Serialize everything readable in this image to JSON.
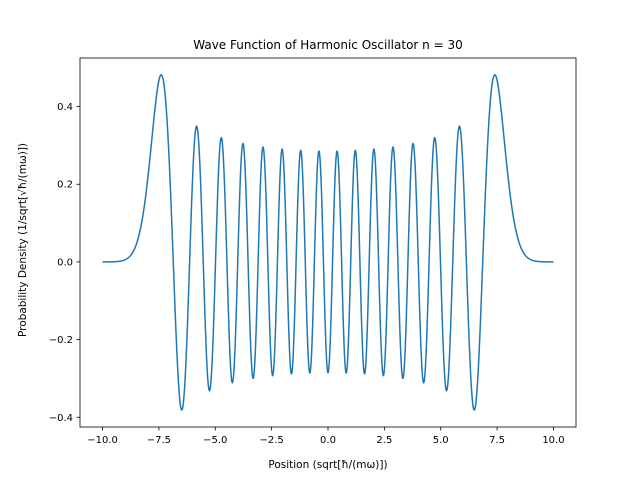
{
  "chart_data": {
    "type": "line",
    "title": "Wave Function of Harmonic Oscillator n = 30",
    "xlabel": "Position (sqrt[ħ/(mω)])",
    "ylabel": "Probability Density (1/sqrt[√ħ/(mω)])",
    "xlim": [
      -11.0,
      11.0
    ],
    "ylim": [
      -0.425,
      0.525
    ],
    "x_ticks": [
      -10.0,
      -7.5,
      -5.0,
      -2.5,
      0.0,
      2.5,
      5.0,
      7.5,
      10.0
    ],
    "x_tick_labels": [
      "−10.0",
      "−7.5",
      "−5.0",
      "−2.5",
      "0.0",
      "2.5",
      "5.0",
      "7.5",
      "10.0"
    ],
    "y_ticks": [
      -0.4,
      -0.2,
      0.0,
      0.2,
      0.4
    ],
    "y_tick_labels": [
      "−0.4",
      "−0.2",
      "0.0",
      "0.2",
      "0.4"
    ],
    "grid": false,
    "series": [
      {
        "n": 30,
        "x_range": [
          -10.0,
          10.0
        ],
        "samples": 1000,
        "color": "#1f77b4"
      }
    ]
  }
}
